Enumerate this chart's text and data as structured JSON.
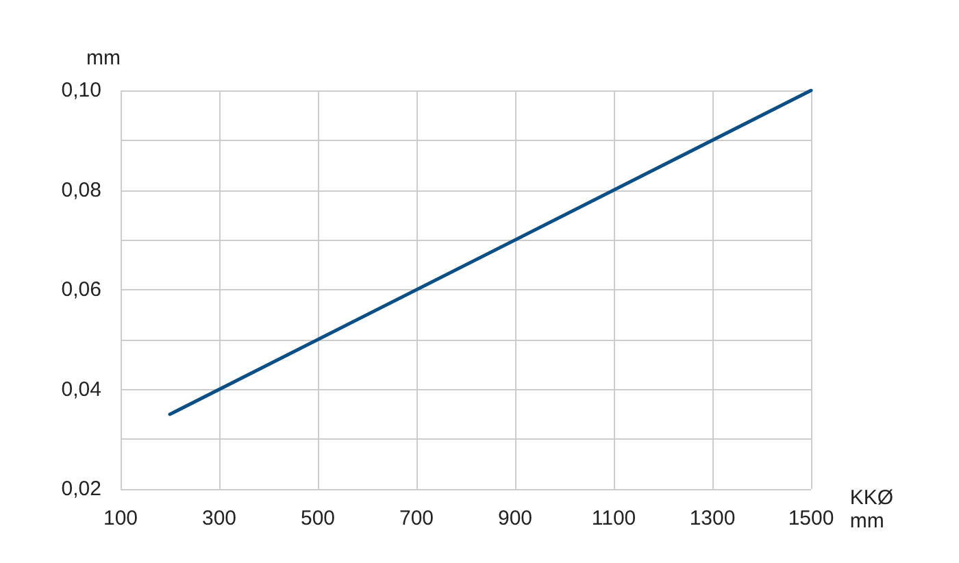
{
  "chart_data": {
    "type": "line",
    "ylabel": "mm",
    "xlabel": "KKØ\nmm",
    "x": [
      200,
      1500
    ],
    "series": [
      {
        "color": "#0b4f85",
        "values": [
          0.035,
          0.1
        ]
      }
    ],
    "xlim": [
      100,
      1500
    ],
    "xticks": [
      100,
      300,
      500,
      700,
      900,
      1100,
      1300,
      1500
    ],
    "ylim": [
      0.02,
      0.1
    ],
    "yticks": [
      {
        "value": 0.02,
        "label": "0,02"
      },
      {
        "value": 0.03,
        "label": null
      },
      {
        "value": 0.04,
        "label": "0,04"
      },
      {
        "value": 0.05,
        "label": null
      },
      {
        "value": 0.06,
        "label": "0,06"
      },
      {
        "value": 0.07,
        "label": null
      },
      {
        "value": 0.08,
        "label": "0,08"
      },
      {
        "value": 0.09,
        "label": null
      },
      {
        "value": 0.1,
        "label": "0,10"
      }
    ],
    "grid": true,
    "marker": "none",
    "line_style": "solid"
  }
}
